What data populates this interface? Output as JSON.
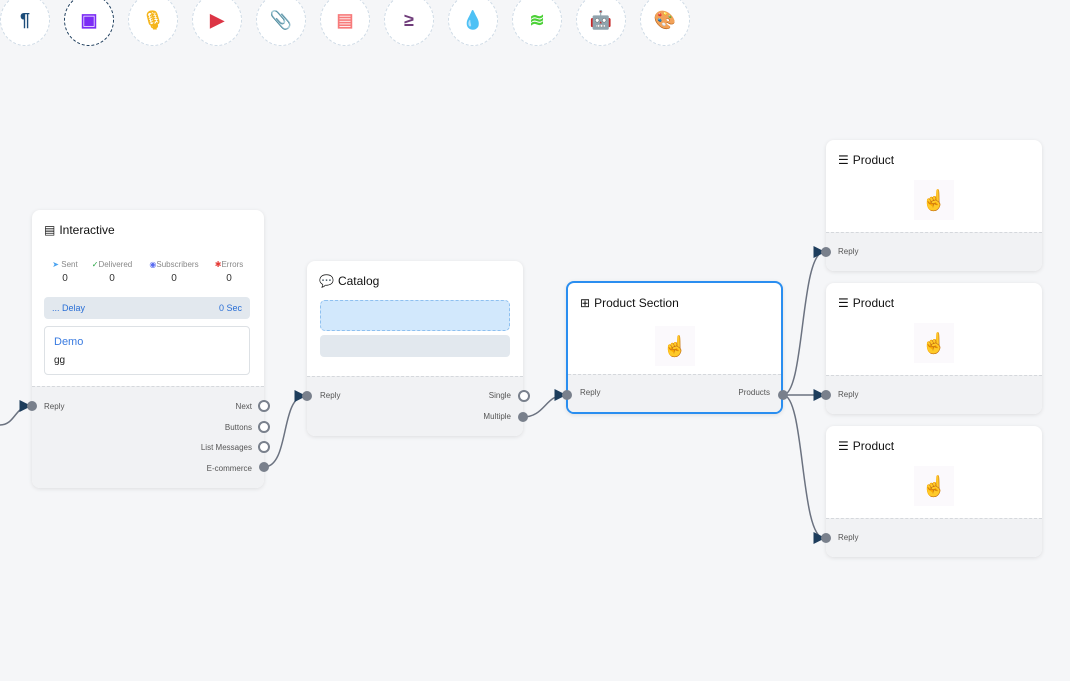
{
  "toolbar": [
    {
      "icon": "paragraph-icon",
      "glyph": "¶",
      "color": "#1d4d7a"
    },
    {
      "icon": "image-icon",
      "glyph": "▣",
      "color": "#7b2cf5"
    },
    {
      "icon": "microphone-icon",
      "glyph": "🎙",
      "color": "#f5b51c"
    },
    {
      "icon": "youtube-icon",
      "glyph": "▶",
      "color": "#dc3545"
    },
    {
      "icon": "paperclip-icon",
      "glyph": "📎",
      "color": "#28a745"
    },
    {
      "icon": "newspaper-icon",
      "glyph": "▤",
      "color": "#f77b7b"
    },
    {
      "icon": "greater-equal-icon",
      "glyph": "≥",
      "color": "#6f3c7a"
    },
    {
      "icon": "droplet-icon",
      "glyph": "💧",
      "color": "#c8102e"
    },
    {
      "icon": "stack-icon",
      "glyph": "≋",
      "color": "#4cd137"
    },
    {
      "icon": "robot-icon",
      "glyph": "🤖",
      "color": "#1a1aff"
    },
    {
      "icon": "palette-icon",
      "glyph": "🎨",
      "color": "#22c922"
    }
  ],
  "interactive": {
    "title": "Interactive",
    "stats": [
      {
        "label": "Sent",
        "value": "0"
      },
      {
        "label": "Delivered",
        "value": "0"
      },
      {
        "label": "Subscribers",
        "value": "0"
      },
      {
        "label": "Errors",
        "value": "0"
      }
    ],
    "delay_label": "... Delay",
    "delay_value": "0 Sec",
    "card_title": "Demo",
    "card_body": "gg",
    "reply": "Reply",
    "outputs": [
      "Next",
      "Buttons",
      "List Messages",
      "E-commerce"
    ]
  },
  "catalog": {
    "title": "Catalog",
    "reply": "Reply",
    "outputs": [
      "Single",
      "Multiple"
    ]
  },
  "product_section": {
    "title": "Product Section",
    "reply": "Reply",
    "output": "Products"
  },
  "products": [
    {
      "title": "Product",
      "reply": "Reply"
    },
    {
      "title": "Product",
      "reply": "Reply"
    },
    {
      "title": "Product",
      "reply": "Reply"
    }
  ],
  "colors": {
    "accent": "#2a8ef0",
    "edge": "#6b7280",
    "arrow": "#1d3d5c"
  }
}
